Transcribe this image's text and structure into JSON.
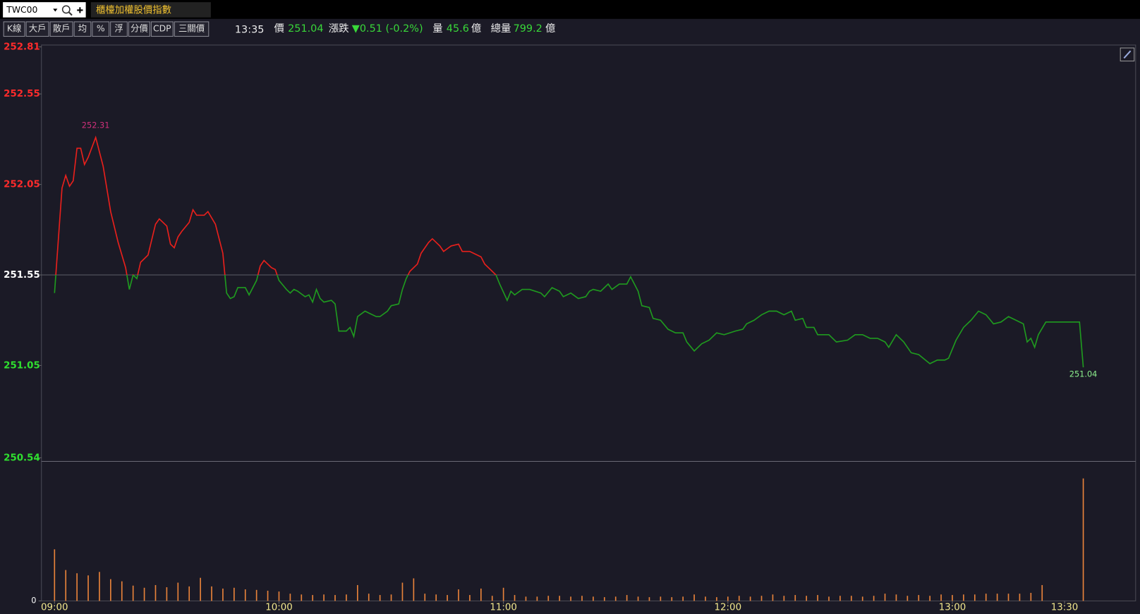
{
  "toolbar": {
    "symbol": "TWC00",
    "name": "櫃檯加權股價指數",
    "buttons": [
      "K線",
      "大戶",
      "散戶",
      "均",
      "%",
      "浮",
      "分價",
      "CDP",
      "三關價"
    ]
  },
  "quote": {
    "time": "13:35",
    "price_label": "價",
    "price": "251.04",
    "change_label": "漲跌",
    "change": "▼0.51 (-0.2%)",
    "volume_label": "量",
    "volume": "45.6",
    "volume_unit": "億",
    "total_label": "總量",
    "total": "799.2",
    "total_unit": "億"
  },
  "chart_data": [
    {
      "type": "line",
      "reference": 251.55,
      "color_above": "#e8201c",
      "color_below": "#1f9a1f",
      "high_color": "#d0307a",
      "last_color": "#8df08d",
      "xlim": [
        536.5,
        829
      ],
      "ylim": [
        250.52,
        252.82
      ],
      "yticks": [
        250.54,
        251.05,
        251.55,
        252.05,
        252.55,
        252.81
      ],
      "x": [
        540,
        542,
        543,
        544,
        545,
        546,
        547,
        548,
        549,
        551,
        553,
        555,
        557,
        559,
        560,
        561,
        562,
        563,
        565,
        567,
        568,
        570,
        571,
        572,
        573,
        574,
        576,
        577,
        578,
        580,
        581,
        583,
        584,
        585,
        586,
        587,
        588,
        589,
        591,
        592,
        594,
        595,
        596,
        598,
        599,
        600,
        602,
        603,
        604,
        605,
        607,
        608,
        609,
        610,
        611,
        612,
        614,
        615,
        616,
        618,
        619,
        620,
        621,
        623,
        624,
        626,
        627,
        629,
        630,
        632,
        633,
        634,
        635,
        637,
        638,
        640,
        641,
        643,
        644,
        646,
        648,
        649,
        651,
        652,
        654,
        655,
        658,
        659,
        661,
        662,
        663,
        665,
        667,
        670,
        671,
        673,
        675,
        676,
        678,
        680,
        682,
        683,
        684,
        686,
        688,
        689,
        691,
        693,
        694,
        696,
        697,
        699,
        700,
        702,
        704,
        706,
        708,
        709,
        711,
        713,
        715,
        717,
        719,
        722,
        724,
        725,
        727,
        729,
        731,
        733,
        735,
        737,
        738,
        740,
        741,
        743,
        744,
        747,
        749,
        752,
        754,
        756,
        758,
        760,
        762,
        763,
        765,
        767,
        769,
        771,
        774,
        776,
        778,
        779,
        781,
        783,
        785,
        787,
        789,
        791,
        793,
        795,
        797,
        799,
        800,
        801,
        802,
        803,
        805,
        814,
        815
      ],
      "values": [
        251.45,
        252.03,
        252.1,
        252.04,
        252.07,
        252.25,
        252.25,
        252.16,
        252.2,
        252.31,
        252.15,
        251.9,
        251.73,
        251.59,
        251.47,
        251.55,
        251.53,
        251.62,
        251.66,
        251.83,
        251.86,
        251.82,
        251.72,
        251.7,
        251.76,
        251.79,
        251.84,
        251.91,
        251.88,
        251.88,
        251.9,
        251.83,
        251.75,
        251.67,
        251.45,
        251.42,
        251.43,
        251.48,
        251.48,
        251.44,
        251.52,
        251.6,
        251.63,
        251.59,
        251.58,
        251.52,
        251.47,
        251.45,
        251.47,
        251.46,
        251.43,
        251.44,
        251.4,
        251.47,
        251.42,
        251.4,
        251.41,
        251.39,
        251.24,
        251.24,
        251.26,
        251.21,
        251.32,
        251.35,
        251.34,
        251.32,
        251.32,
        251.35,
        251.38,
        251.39,
        251.47,
        251.53,
        251.57,
        251.61,
        251.67,
        251.73,
        251.75,
        251.71,
        251.68,
        251.71,
        251.72,
        251.68,
        251.68,
        251.67,
        251.65,
        251.61,
        251.55,
        251.5,
        251.41,
        251.46,
        251.44,
        251.47,
        251.47,
        251.45,
        251.43,
        251.48,
        251.46,
        251.43,
        251.45,
        251.42,
        251.43,
        251.46,
        251.47,
        251.46,
        251.5,
        251.47,
        251.5,
        251.5,
        251.54,
        251.46,
        251.38,
        251.37,
        251.31,
        251.3,
        251.25,
        251.23,
        251.23,
        251.18,
        251.13,
        251.17,
        251.19,
        251.23,
        251.22,
        251.24,
        251.25,
        251.28,
        251.3,
        251.33,
        251.35,
        251.35,
        251.33,
        251.35,
        251.3,
        251.31,
        251.26,
        251.26,
        251.22,
        251.22,
        251.18,
        251.19,
        251.22,
        251.22,
        251.2,
        251.2,
        251.18,
        251.15,
        251.22,
        251.18,
        251.12,
        251.11,
        251.06,
        251.08,
        251.08,
        251.09,
        251.19,
        251.26,
        251.3,
        251.35,
        251.33,
        251.28,
        251.29,
        251.32,
        251.3,
        251.28,
        251.18,
        251.2,
        251.15,
        251.22,
        251.29,
        251.29,
        251.04
      ]
    },
    {
      "type": "bar",
      "color": "#e8823a",
      "xlim": [
        536.5,
        829
      ],
      "ylim": [
        0,
        51.4
      ],
      "yticks": [
        0
      ],
      "xticks": [
        {
          "value": 540,
          "label": "09:00"
        },
        {
          "value": 600,
          "label": "10:00"
        },
        {
          "value": 660,
          "label": "11:00"
        },
        {
          "value": 720,
          "label": "12:00"
        },
        {
          "value": 780,
          "label": "13:00"
        },
        {
          "value": 810,
          "label": "13:30"
        }
      ],
      "x": [
        540,
        543,
        546,
        549,
        552,
        555,
        558,
        561,
        564,
        567,
        570,
        573,
        576,
        579,
        582,
        585,
        588,
        591,
        594,
        597,
        600,
        603,
        606,
        609,
        612,
        615,
        618,
        621,
        624,
        627,
        630,
        633,
        636,
        639,
        642,
        645,
        648,
        651,
        654,
        657,
        660,
        663,
        666,
        669,
        672,
        675,
        678,
        681,
        684,
        687,
        690,
        693,
        696,
        699,
        702,
        705,
        708,
        711,
        714,
        717,
        720,
        723,
        726,
        729,
        732,
        735,
        738,
        741,
        744,
        747,
        750,
        753,
        756,
        759,
        762,
        765,
        768,
        771,
        774,
        777,
        780,
        783,
        786,
        789,
        792,
        795,
        798,
        801,
        804,
        815
      ],
      "values": [
        19.2,
        11.5,
        10.3,
        9.5,
        10.8,
        8.1,
        7.3,
        5.7,
        4.9,
        5.9,
        5.1,
        6.8,
        5.4,
        8.6,
        5.4,
        4.6,
        4.9,
        4.3,
        4.1,
        3.8,
        3.5,
        2.7,
        2.4,
        2.2,
        2.4,
        2.2,
        2.4,
        5.9,
        2.7,
        2.2,
        2.4,
        6.8,
        8.4,
        2.7,
        2.4,
        2.2,
        4.3,
        2.2,
        4.6,
        1.9,
        4.9,
        2.2,
        1.6,
        1.6,
        1.9,
        1.9,
        1.6,
        1.9,
        1.6,
        1.4,
        1.6,
        2.2,
        1.6,
        1.4,
        1.6,
        1.4,
        1.6,
        2.4,
        1.6,
        1.4,
        1.6,
        1.9,
        1.6,
        1.9,
        2.4,
        1.9,
        2.2,
        1.9,
        2.2,
        1.6,
        1.9,
        1.9,
        1.6,
        1.9,
        2.7,
        2.4,
        1.9,
        2.2,
        1.9,
        2.4,
        2.2,
        2.4,
        2.4,
        2.7,
        2.7,
        2.7,
        2.7,
        3,
        5.9,
        45.6
      ]
    }
  ]
}
